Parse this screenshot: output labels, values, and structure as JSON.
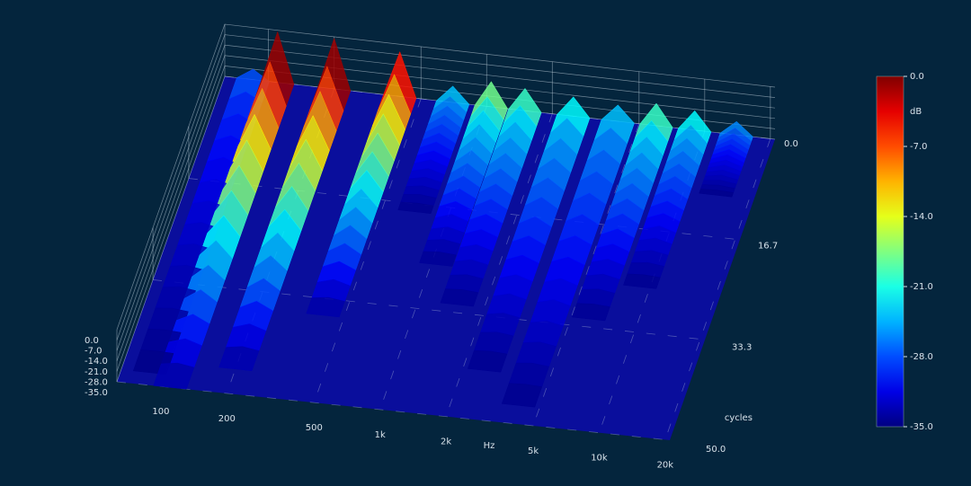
{
  "chart_data": {
    "type": "waterfall",
    "xlabel": "Hz",
    "ylabel": "cycles",
    "xlim": [
      63,
      21000
    ],
    "xticks": [
      100,
      200,
      500,
      {
        "value": 1000,
        "label": "1k"
      },
      {
        "value": 2000,
        "label": "2k"
      },
      {
        "value": 5000,
        "label": "5k"
      },
      {
        "value": 10000,
        "label": "10k"
      },
      {
        "value": 20000,
        "label": "20k"
      }
    ],
    "ylim": [
      0,
      50
    ],
    "yticks": [
      {
        "value": 0,
        "label": "0.0"
      },
      16.7,
      33.3,
      {
        "value": 50,
        "label": "50.0"
      }
    ],
    "zlim": [
      -35,
      0
    ],
    "zticks": [
      {
        "value": 0,
        "label": "0.0"
      },
      {
        "value": -7,
        "label": "-7.0"
      },
      {
        "value": -14,
        "label": "-14.0"
      },
      {
        "value": -21,
        "label": "-21.0"
      },
      {
        "value": -28,
        "label": "-28.0"
      },
      {
        "value": -35,
        "label": "-35.0"
      }
    ],
    "colormap": "jet",
    "colorbar": {
      "label": "dB",
      "lim": [
        -35,
        0
      ],
      "ticks": [
        {
          "value": 0,
          "label": "0.0"
        },
        {
          "value": -7,
          "label": "-7.0"
        },
        {
          "value": -14,
          "label": "-14.0"
        },
        {
          "value": -21,
          "label": "-21.0"
        },
        {
          "value": -28,
          "label": "-28.0"
        },
        {
          "value": -35,
          "label": "-35.0"
        }
      ]
    },
    "x": [
      85,
      110,
      200,
      400,
      700,
      1050,
      1500,
      2500,
      4000,
      6000,
      9000,
      14000
    ],
    "values": [
      -28,
      -1,
      -1,
      -5,
      -24,
      -18,
      -20,
      -22,
      -24,
      -20,
      -22,
      -26
    ],
    "decay": [
      48,
      50,
      46,
      36,
      18,
      26,
      32,
      42,
      47,
      32,
      26,
      10
    ]
  }
}
